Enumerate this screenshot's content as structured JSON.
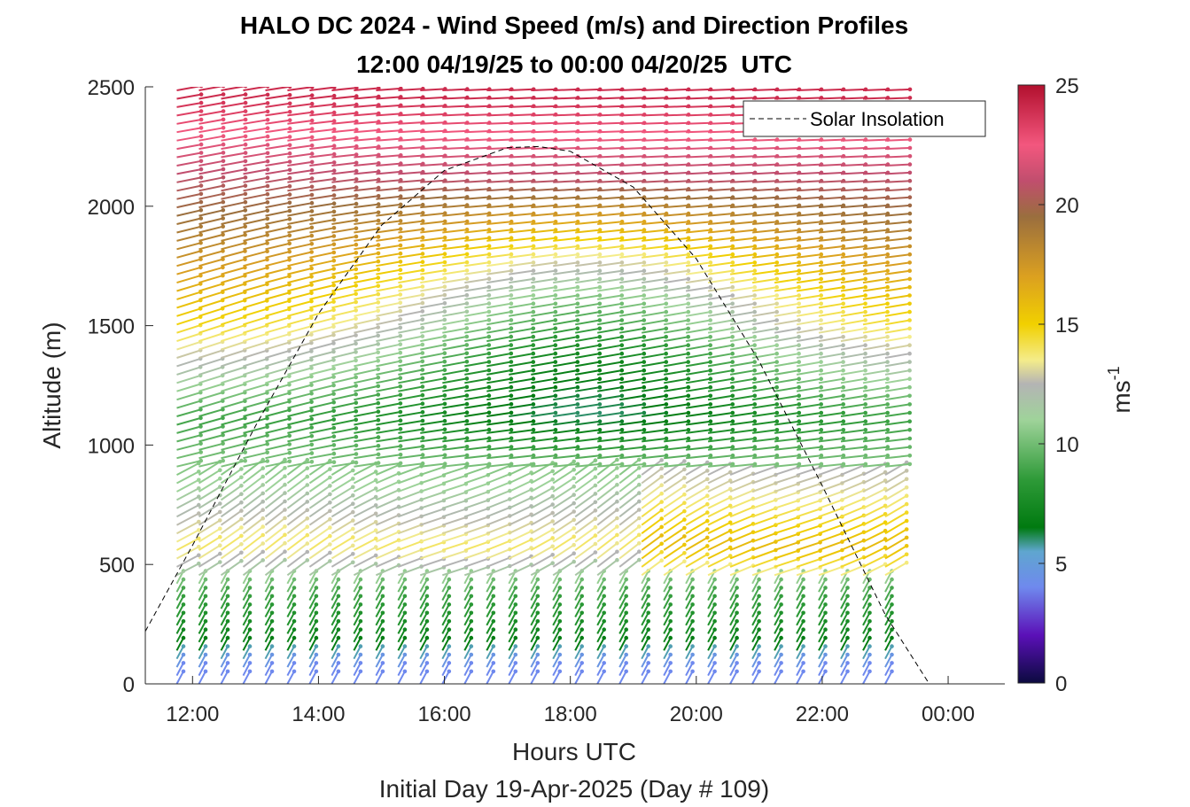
{
  "chart_data": {
    "type": "wind-barb-profile",
    "title": "HALO DC 2024 - Wind Speed (m/s) and Direction Profiles",
    "subtitle": "12:00 04/19/25 to 00:00 04/20/25  UTC",
    "xlabel": "Hours UTC",
    "xlabel2": "Initial Day 19-Apr-2025 (Day # 109)",
    "ylabel": "Altitude (m)",
    "x_ticks": [
      "12:00",
      "14:00",
      "16:00",
      "18:00",
      "20:00",
      "22:00",
      "00:00"
    ],
    "x_tick_hours": [
      12,
      14,
      16,
      18,
      20,
      22,
      24
    ],
    "xlim_hours": [
      11.25,
      24.9
    ],
    "y_ticks": [
      "0",
      "500",
      "1000",
      "1500",
      "2000",
      "2500"
    ],
    "y_tick_values": [
      0,
      500,
      1000,
      1500,
      2000,
      2500
    ],
    "ylim": [
      0,
      2500
    ],
    "colorbar": {
      "label": "ms-1",
      "label_main": "ms",
      "label_sup": "-1",
      "ticks": [
        "0",
        "5",
        "10",
        "15",
        "20",
        "25"
      ],
      "tick_values": [
        0,
        5,
        10,
        15,
        20,
        25
      ],
      "range": [
        0,
        25
      ]
    },
    "legend": {
      "entries": [
        "Solar Insolation"
      ],
      "placement": "top-right"
    },
    "solar_insolation_curve": {
      "style": "dashed",
      "color": "#000000",
      "points_hour_alt": [
        [
          11.25,
          220
        ],
        [
          12.0,
          580
        ],
        [
          13.0,
          1080
        ],
        [
          14.0,
          1550
        ],
        [
          15.0,
          1920
        ],
        [
          16.0,
          2150
        ],
        [
          17.0,
          2245
        ],
        [
          17.5,
          2250
        ],
        [
          18.0,
          2230
        ],
        [
          19.0,
          2080
        ],
        [
          20.0,
          1780
        ],
        [
          21.0,
          1350
        ],
        [
          22.0,
          830
        ],
        [
          23.0,
          290
        ],
        [
          23.7,
          0
        ],
        [
          24.9,
          0
        ]
      ]
    },
    "barb_grid": {
      "time_start_hour": 11.75,
      "time_end_hour": 23.0,
      "time_count": 33,
      "alt_start_m": 0,
      "alt_end_m": 2500,
      "alt_step_m": 35
    },
    "wind_speed_field_ms": [
      {
        "alt_m": 50,
        "speed": 4
      },
      {
        "alt_m": 150,
        "speed": 7
      },
      {
        "alt_m": 350,
        "speed": 9
      },
      {
        "alt_m": 550,
        "speed": 14
      },
      {
        "alt_m": 800,
        "speed": 11
      },
      {
        "alt_m": 1100,
        "speed": 9
      },
      {
        "alt_m": 1500,
        "speed": 15
      },
      {
        "alt_m": 1900,
        "speed": 19
      },
      {
        "alt_m": 2250,
        "speed": 22
      },
      {
        "alt_m": 2450,
        "speed": 24
      }
    ],
    "colormap_stops": [
      {
        "v": 0,
        "c": "#0b0a3f"
      },
      {
        "v": 2,
        "c": "#5b10b8"
      },
      {
        "v": 4,
        "c": "#6f89ee"
      },
      {
        "v": 5.5,
        "c": "#5fa6cf"
      },
      {
        "v": 6.5,
        "c": "#007a10"
      },
      {
        "v": 8.5,
        "c": "#2e9a38"
      },
      {
        "v": 11,
        "c": "#9fd39a"
      },
      {
        "v": 12.5,
        "c": "#b4b4b4"
      },
      {
        "v": 13.5,
        "c": "#f4ec8a"
      },
      {
        "v": 15,
        "c": "#f1d000"
      },
      {
        "v": 17,
        "c": "#dba020"
      },
      {
        "v": 19.5,
        "c": "#9a6e3e"
      },
      {
        "v": 21,
        "c": "#c14e6e"
      },
      {
        "v": 22.5,
        "c": "#f3577e"
      },
      {
        "v": 25,
        "c": "#b2102e"
      }
    ]
  }
}
